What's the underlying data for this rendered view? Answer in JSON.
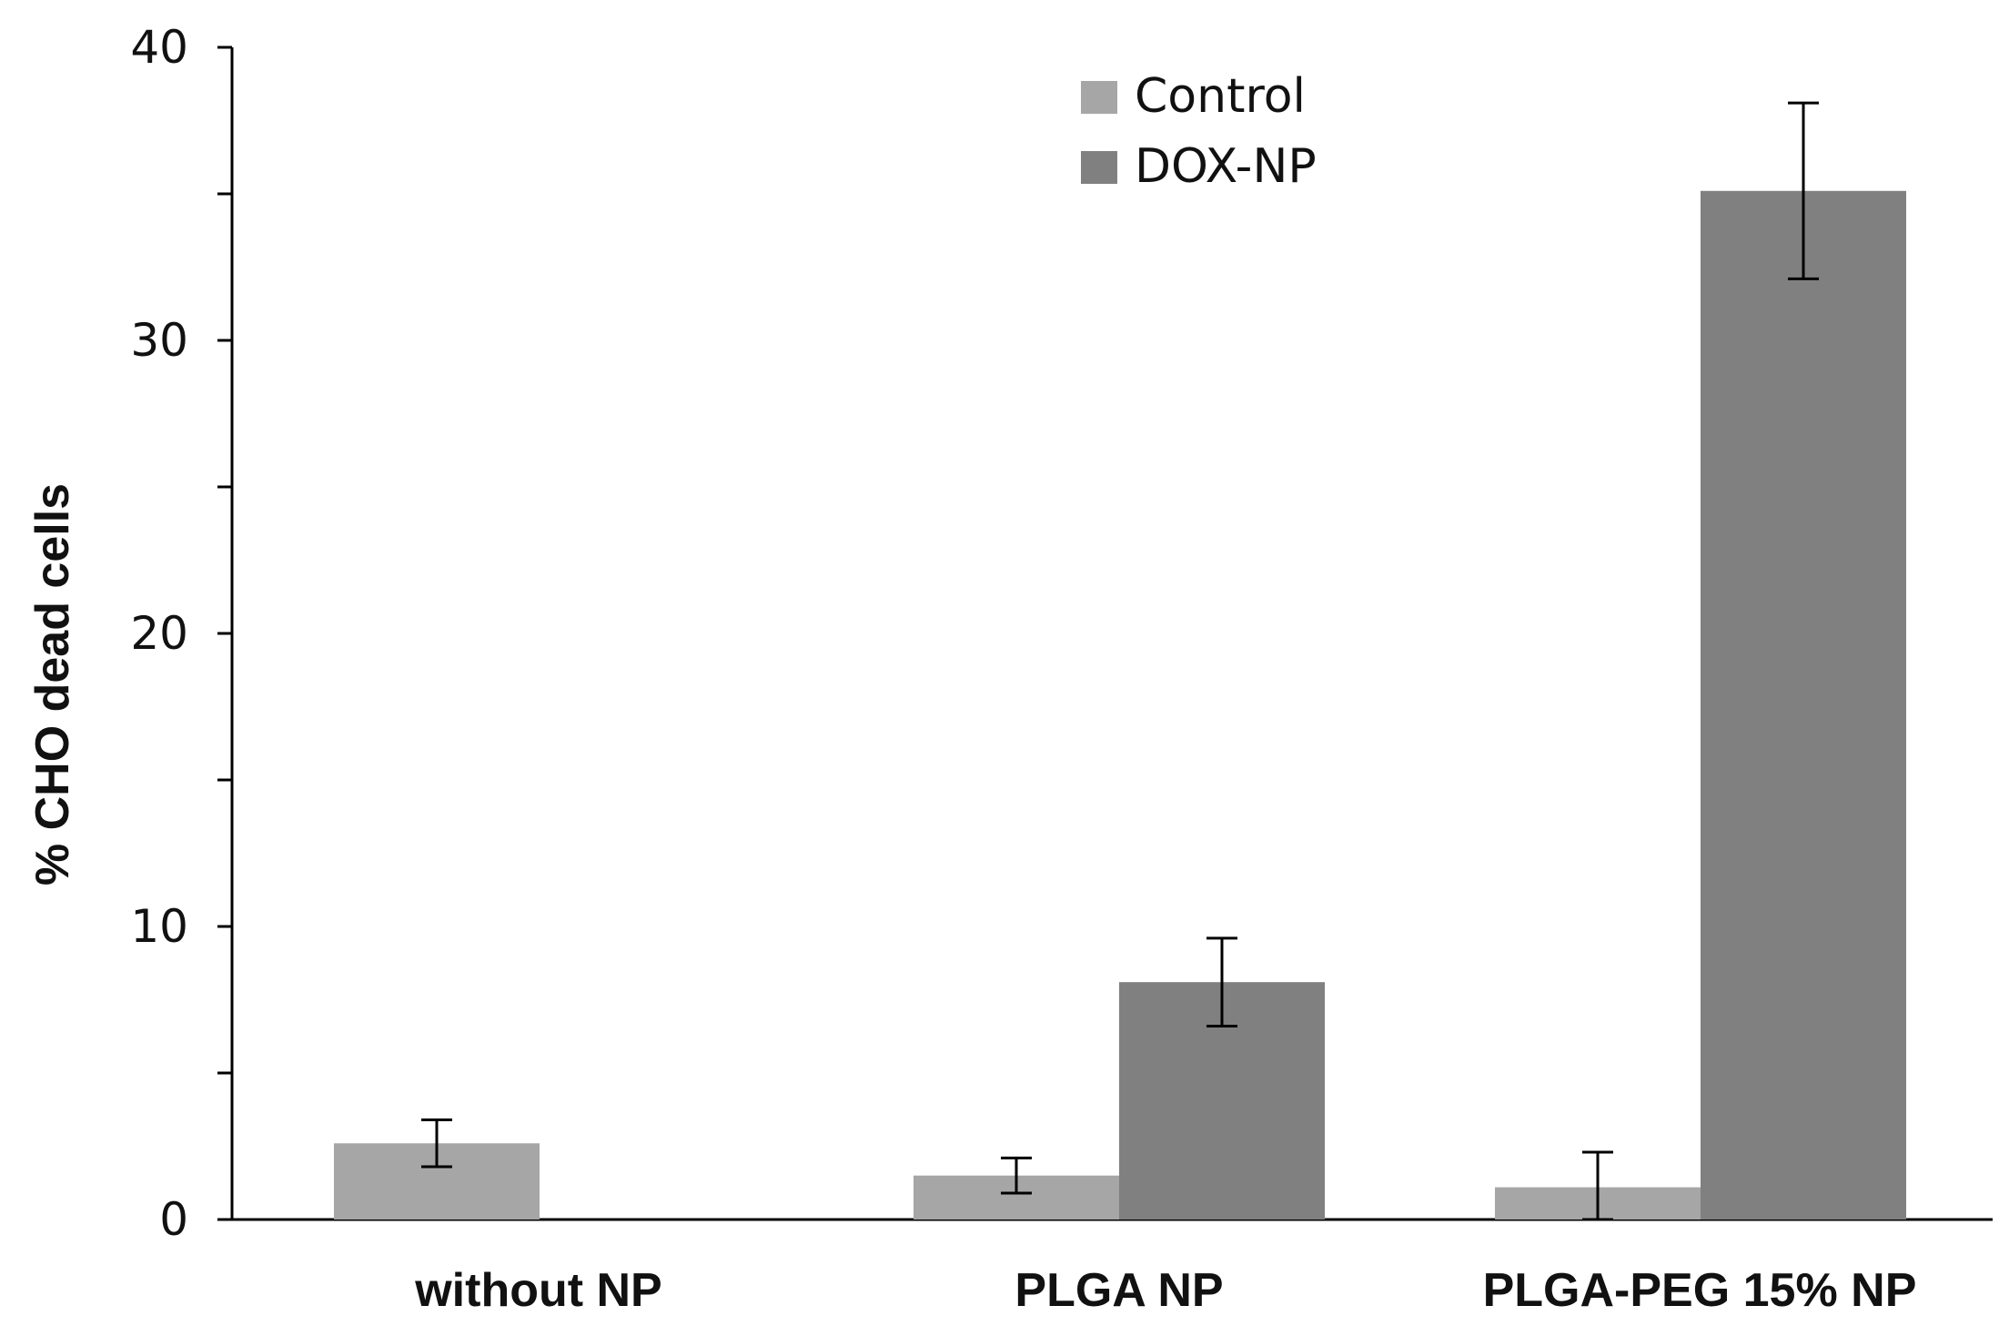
{
  "chart_data": {
    "type": "bar",
    "title": "",
    "xlabel": "",
    "ylabel": "% CHO dead cells",
    "categories": [
      "without NP",
      "PLGA NP",
      "PLGA-PEG 15% NP"
    ],
    "series": [
      {
        "name": "Control",
        "color": "#a6a6a6",
        "values": [
          2.6,
          1.5,
          1.1
        ],
        "errors": [
          0.8,
          0.6,
          1.2
        ]
      },
      {
        "name": "DOX-NP",
        "color": "#808080",
        "values": [
          null,
          8.1,
          35.1
        ],
        "errors": [
          null,
          1.5,
          3.0
        ]
      }
    ],
    "ylim": [
      0,
      40
    ],
    "yticks": [
      0,
      10,
      20,
      30,
      40
    ],
    "yticks_minor": [
      5,
      15,
      25,
      35
    ],
    "legend": "top-center",
    "grid": false
  }
}
